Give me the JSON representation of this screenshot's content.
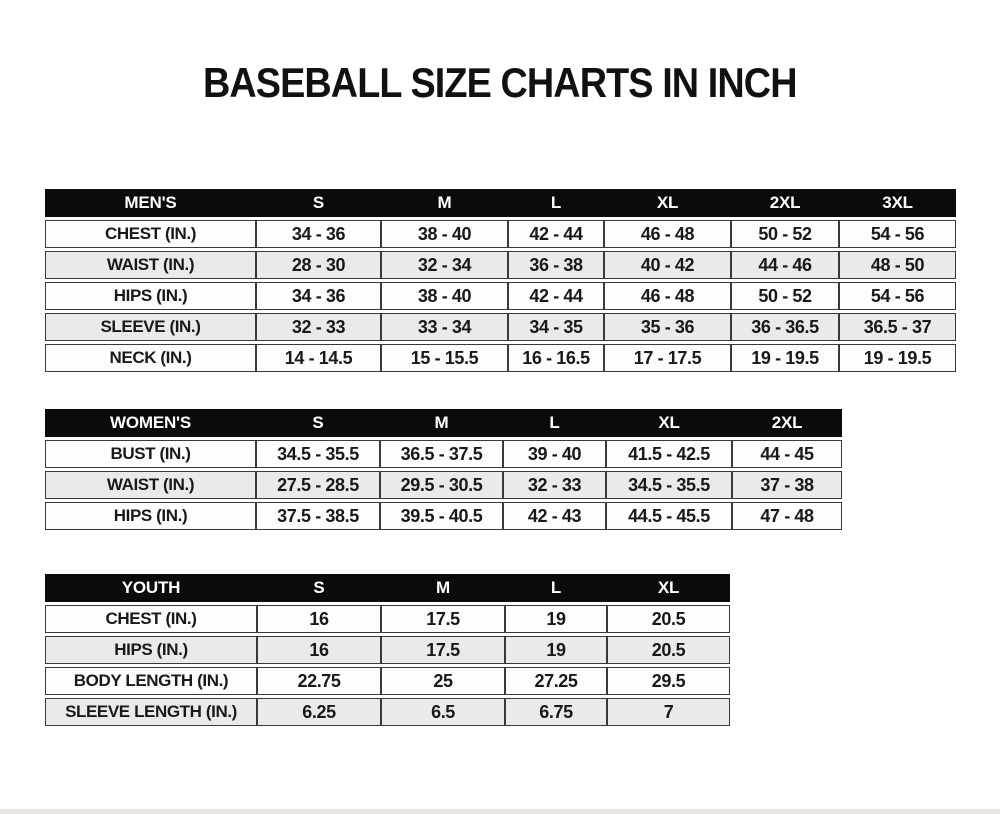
{
  "title": "BASEBALL SIZE CHARTS IN INCH",
  "colors": {
    "header_bg": "#0b0b0b",
    "header_text": "#ffffff",
    "row_bg": "#fdfdfd",
    "stripe_bg": "#eaeaea",
    "border": "#3a3a3a",
    "text": "#191919"
  },
  "tables": [
    {
      "group": "MEN'S",
      "sizes": [
        "S",
        "M",
        "L",
        "XL",
        "2XL",
        "3XL"
      ],
      "rows": [
        {
          "label": "CHEST (IN.)",
          "values": [
            "34 - 36",
            "38 - 40",
            "42 - 44",
            "46 - 48",
            "50 - 52",
            "54 - 56"
          ]
        },
        {
          "label": "WAIST (IN.)",
          "values": [
            "28 - 30",
            "32 - 34",
            "36 - 38",
            "40 - 42",
            "44 - 46",
            "48 - 50"
          ]
        },
        {
          "label": "HIPS (IN.)",
          "values": [
            "34 - 36",
            "38 - 40",
            "42 - 44",
            "46 - 48",
            "50 - 52",
            "54 - 56"
          ]
        },
        {
          "label": "SLEEVE (IN.)",
          "values": [
            "32 - 33",
            "33 - 34",
            "34 - 35",
            "35 - 36",
            "36 - 36.5",
            "36.5 - 37"
          ]
        },
        {
          "label": "NECK (IN.)",
          "values": [
            "14 - 14.5",
            "15 - 15.5",
            "16 - 16.5",
            "17 - 17.5",
            "19 - 19.5",
            "19 - 19.5"
          ]
        }
      ]
    },
    {
      "group": "WOMEN'S",
      "sizes": [
        "S",
        "M",
        "L",
        "XL",
        "2XL"
      ],
      "rows": [
        {
          "label": "BUST (IN.)",
          "values": [
            "34.5 - 35.5",
            "36.5 - 37.5",
            "39 - 40",
            "41.5 - 42.5",
            "44 - 45"
          ]
        },
        {
          "label": "WAIST (IN.)",
          "values": [
            "27.5 - 28.5",
            "29.5 - 30.5",
            "32 - 33",
            "34.5 - 35.5",
            "37 - 38"
          ]
        },
        {
          "label": "HIPS (IN.)",
          "values": [
            "37.5 - 38.5",
            "39.5 - 40.5",
            "42 - 43",
            "44.5 - 45.5",
            "47 - 48"
          ]
        }
      ]
    },
    {
      "group": "YOUTH",
      "sizes": [
        "S",
        "M",
        "L",
        "XL"
      ],
      "rows": [
        {
          "label": "CHEST (IN.)",
          "values": [
            "16",
            "17.5",
            "19",
            "20.5"
          ]
        },
        {
          "label": "HIPS (IN.)",
          "values": [
            "16",
            "17.5",
            "19",
            "20.5"
          ]
        },
        {
          "label": "BODY LENGTH (IN.)",
          "values": [
            "22.75",
            "25",
            "27.25",
            "29.5"
          ]
        },
        {
          "label": "SLEEVE LENGTH (IN.)",
          "values": [
            "6.25",
            "6.5",
            "6.75",
            "7"
          ]
        }
      ]
    }
  ]
}
